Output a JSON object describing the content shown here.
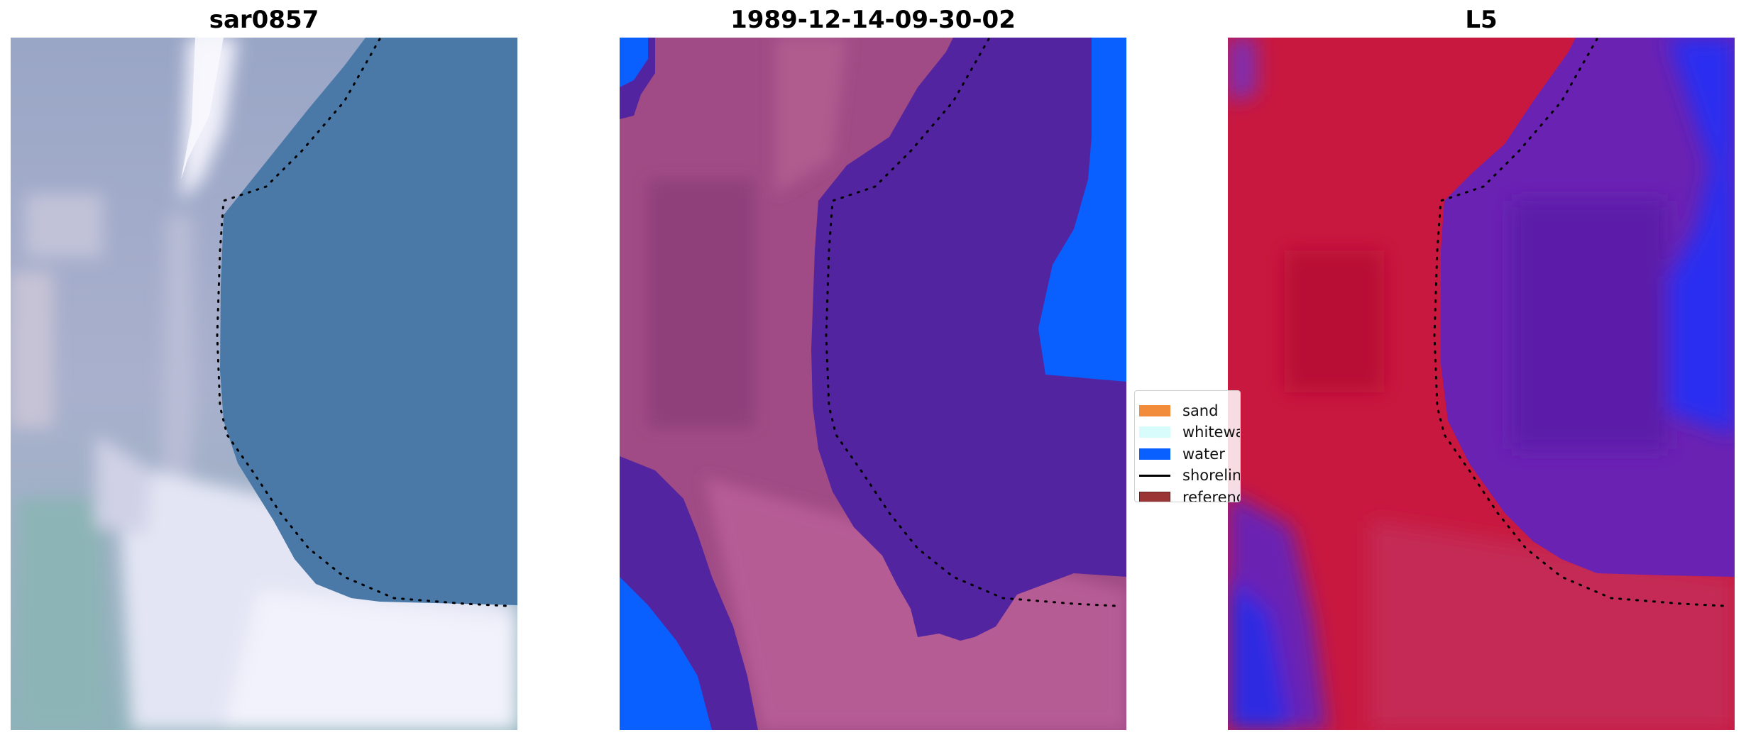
{
  "panels": [
    {
      "title": "sar0857"
    },
    {
      "title": "1989-12-14-09-30-02"
    },
    {
      "title": "L5"
    }
  ],
  "legend": {
    "items": [
      {
        "label": "sand",
        "color": "#f28c3a",
        "kind": "patch"
      },
      {
        "label": "whitewater",
        "color": "#d8fbfb",
        "kind": "patch"
      },
      {
        "label": "water",
        "color": "#0a5fff",
        "kind": "patch"
      },
      {
        "label": "shoreline",
        "color": "#000000",
        "kind": "line"
      },
      {
        "label": "reference shoreline",
        "color": "#9b3535",
        "kind": "patch"
      }
    ]
  },
  "colors": {
    "classified_land": "#a04b85",
    "classified_water": "#5324a0",
    "classified_water_edge": "#0a5fff",
    "ndwi_land": "#c8153f",
    "ndwi_water": "#6a22b3",
    "ndwi_strong_water": "#1a24f0",
    "rgb_water": "#4a7aa8",
    "rgb_land": "#9fa9c7",
    "rgb_sand": "#e9eaf6"
  }
}
